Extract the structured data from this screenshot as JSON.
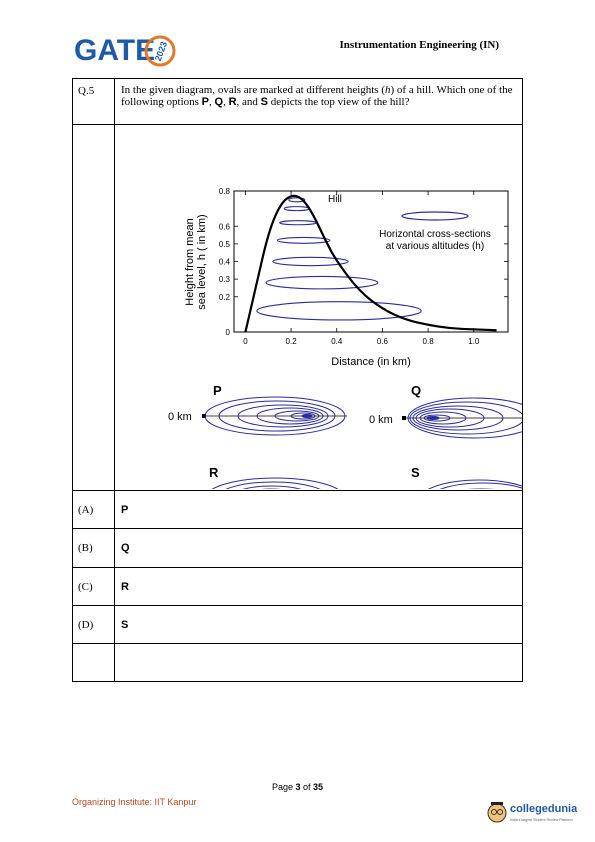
{
  "header": {
    "logo_text": "GATE",
    "logo_year": "2023",
    "subject": "Instrumentation Engineering (IN)"
  },
  "question": {
    "number": "Q.5",
    "text_1": "In the given diagram, ovals are marked at different heights (",
    "text_h": "h",
    "text_2": ") of a hill. Which one of the following options ",
    "P": "P",
    "c1": ", ",
    "Q": "Q",
    "c2": ", ",
    "R": "R",
    "c3": ", and ",
    "S": "S",
    "text_3": " depicts the top view of the hill?"
  },
  "chart_data": {
    "type": "line",
    "title": "",
    "xlabel": "Distance (in km)",
    "ylabel_line1": "Height from mean",
    "ylabel_line2": "sea level, h ( in km)",
    "x_ticks": [
      "0",
      "0.2",
      "0.4",
      "0.6",
      "0.8",
      "1.0"
    ],
    "y_ticks": [
      "0",
      "0.2",
      "0.3",
      "0.4",
      "0.5",
      "0.6",
      "0.8"
    ],
    "xlim": [
      -0.05,
      1.15
    ],
    "ylim": [
      0,
      0.8
    ],
    "hill_label": "Hill",
    "legend_line1": "Horizontal cross-sections",
    "legend_line2": "at various altitudes (h)",
    "curve": {
      "x": [
        0.0,
        0.05,
        0.1,
        0.15,
        0.2,
        0.25,
        0.3,
        0.35,
        0.4,
        0.5,
        0.6,
        0.7,
        0.8,
        0.9,
        1.0,
        1.1
      ],
      "y": [
        0.0,
        0.28,
        0.56,
        0.72,
        0.78,
        0.76,
        0.66,
        0.52,
        0.4,
        0.23,
        0.13,
        0.07,
        0.04,
        0.02,
        0.015,
        0.01
      ]
    }
  },
  "options_fig": {
    "P": "P",
    "Q": "Q",
    "R": "R",
    "S": "S",
    "zero": "0 km"
  },
  "answers": [
    {
      "label": "(A)",
      "text": "P"
    },
    {
      "label": "(B)",
      "text": "Q"
    },
    {
      "label": "(C)",
      "text": "R"
    },
    {
      "label": "(D)",
      "text": "S"
    }
  ],
  "footer": {
    "page": "Page ",
    "page_cur": "3",
    "of": " of ",
    "page_total": "35",
    "org": "Organizing Institute: IIT Kanpur",
    "brand": "collegedunia",
    "tagline": "India's largest Student Review Platform"
  },
  "colors": {
    "logo": "#1e5aa8",
    "accent": "#e07a2a",
    "ellipse": "#2b2b9c",
    "org": "#b84a1e"
  }
}
